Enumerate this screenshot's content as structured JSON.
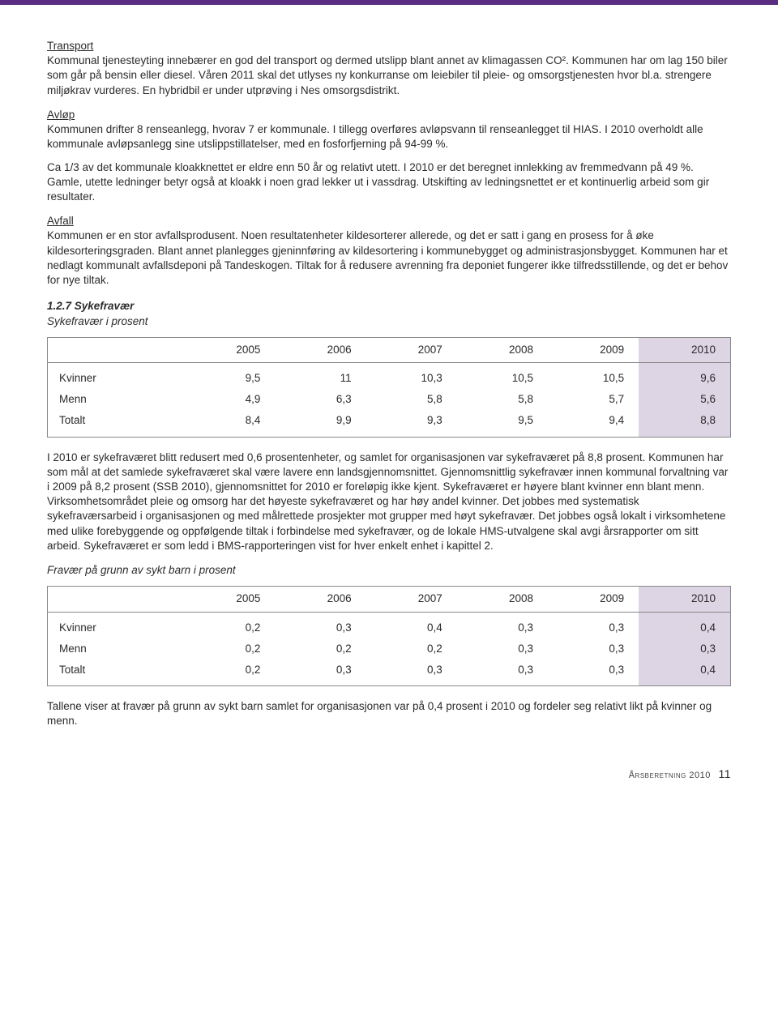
{
  "colors": {
    "top_bar": "#5a2d82",
    "table_highlight_bg": "#ddd4e4",
    "table_border": "#888888",
    "body_text": "#2b2b2b",
    "page_bg": "#ffffff"
  },
  "typography": {
    "body_fontsize_pt": 10,
    "body_line_height": 1.35,
    "font_family": "Arial, Helvetica, sans-serif"
  },
  "sections": {
    "transport": {
      "heading": "Transport",
      "body": "Kommunal tjenesteyting innebærer en god del transport og dermed utslipp blant annet av klimagassen CO². Kommunen har om lag 150 biler som går på bensin eller diesel. Våren 2011 skal det utlyses ny konkurranse om leiebiler til pleie- og omsorgstjenesten hvor bl.a. strengere miljøkrav vurderes. En hybridbil er under utprøving i Nes omsorgsdistrikt."
    },
    "avlop": {
      "heading": "Avløp",
      "body1": "Kommunen drifter 8 renseanlegg, hvorav 7 er kommunale. I tillegg overføres avløpsvann til renseanlegget til HIAS. I 2010 overholdt alle kommunale avløpsanlegg sine utslippstillatelser, med en fosforfjerning på 94-99 %.",
      "body2": "Ca 1/3 av det kommunale kloakknettet er eldre enn 50 år og relativt utett. I 2010 er det beregnet innlekking av fremmedvann på 49 %. Gamle, utette ledninger betyr også at kloakk i noen grad lekker ut i vassdrag. Utskifting av ledningsnettet er et kontinuerlig arbeid som gir resultater."
    },
    "avfall": {
      "heading": "Avfall",
      "body": "Kommunen er en stor avfallsprodusent. Noen resultatenheter kildesorterer allerede, og det er satt i gang en prosess for å øke kildesorteringsgraden. Blant annet planlegges gjeninnføring av kildesortering i kommunebygget og administrasjonsbygget. Kommunen har et nedlagt kommunalt avfallsdeponi på Tandeskogen. Tiltak for å redusere avrenning fra deponiet fungerer ikke tilfredsstillende, og det er behov for nye tiltak."
    }
  },
  "sykefravaer": {
    "title": "1.2.7 Sykefravær",
    "subtitle": "Sykefravær i prosent",
    "table1": {
      "type": "table",
      "columns": [
        "",
        "2005",
        "2006",
        "2007",
        "2008",
        "2009",
        "2010"
      ],
      "rows": [
        [
          "Kvinner",
          "9,5",
          "11",
          "10,3",
          "10,5",
          "10,5",
          "9,6"
        ],
        [
          "Menn",
          "4,9",
          "6,3",
          "5,8",
          "5,8",
          "5,7",
          "5,6"
        ],
        [
          "Totalt",
          "8,4",
          "9,9",
          "9,3",
          "9,5",
          "9,4",
          "8,8"
        ]
      ],
      "highlight_last_column": true,
      "highlight_color": "#ddd4e4",
      "border_color": "#888888",
      "column_alignment": [
        "left",
        "right",
        "right",
        "right",
        "right",
        "right",
        "right"
      ]
    },
    "body_after_table1": "I 2010 er sykefraværet blitt redusert med 0,6 prosentenheter, og samlet for organisasjonen var sykefraværet på 8,8 prosent. Kommunen har som mål at det samlede sykefraværet skal være lavere enn landsgjennomsnittet. Gjennomsnittlig sykefravær innen kommunal forvaltning var i 2009 på 8,2 prosent (SSB 2010), gjennomsnittet for 2010 er foreløpig ikke kjent. Sykefraværet er høyere blant kvinner enn blant menn. Virksomhetsområdet pleie og omsorg har det høyeste sykefraværet og har høy andel kvinner. Det jobbes med systematisk sykefraværsarbeid i organisasjonen og med målrettede prosjekter mot grupper med høyt sykefravær. Det jobbes også lokalt i virksomhetene med ulike forebyggende og oppfølgende tiltak i forbindelse med sykefravær, og de lokale HMS-utvalgene skal avgi årsrapporter om sitt arbeid. Sykefraværet er som ledd i BMS-rapporteringen vist for hver enkelt enhet i kapittel 2.",
    "subtitle2": "Fravær på grunn av sykt barn i prosent",
    "table2": {
      "type": "table",
      "columns": [
        "",
        "2005",
        "2006",
        "2007",
        "2008",
        "2009",
        "2010"
      ],
      "rows": [
        [
          "Kvinner",
          "0,2",
          "0,3",
          "0,4",
          "0,3",
          "0,3",
          "0,4"
        ],
        [
          "Menn",
          "0,2",
          "0,2",
          "0,2",
          "0,3",
          "0,3",
          "0,3"
        ],
        [
          "Totalt",
          "0,2",
          "0,3",
          "0,3",
          "0,3",
          "0,3",
          "0,4"
        ]
      ],
      "highlight_last_column": true,
      "highlight_color": "#ddd4e4",
      "border_color": "#888888",
      "column_alignment": [
        "left",
        "right",
        "right",
        "right",
        "right",
        "right",
        "right"
      ]
    },
    "body_after_table2": "Tallene viser at fravær på grunn av sykt barn samlet for organisasjonen var på 0,4 prosent i 2010 og fordeler seg relativt likt på kvinner og menn."
  },
  "footer": {
    "label": "Årsberetning",
    "year": "2010",
    "page": "11"
  }
}
